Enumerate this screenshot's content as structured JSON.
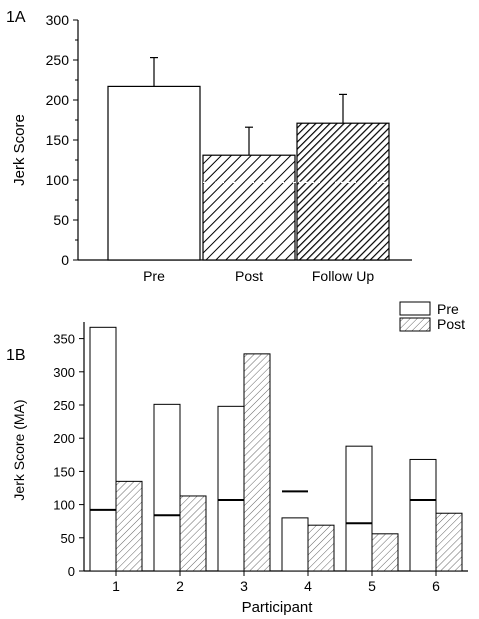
{
  "chart_data": [
    {
      "panel_label": "1A",
      "type": "bar",
      "categories": [
        "Pre",
        "Post",
        "Follow Up"
      ],
      "values": [
        217,
        131,
        171
      ],
      "error_upper": [
        253,
        166,
        207
      ],
      "fill": [
        "blank",
        "diagonal-hatch",
        "dense-diagonal-hatch"
      ],
      "ylabel": "Jerk Score",
      "ylim": [
        0,
        300
      ],
      "yticks": [
        "0",
        "50",
        "100",
        "150",
        "200",
        "250",
        "300"
      ],
      "reference_line": 97,
      "legend": "none",
      "grid": false
    },
    {
      "panel_label": "1B",
      "type": "bar",
      "categories": [
        "1",
        "2",
        "3",
        "4",
        "5",
        "6"
      ],
      "xlabel": "Participant",
      "ylabel": "Jerk Score (MA)",
      "ylim": [
        0,
        375
      ],
      "yticks": [
        "0",
        "50",
        "100",
        "150",
        "200",
        "250",
        "300",
        "350"
      ],
      "series": [
        {
          "name": "Pre",
          "values": [
            367,
            251,
            248,
            80,
            188,
            168
          ],
          "fill": "blank"
        },
        {
          "name": "Post",
          "values": [
            135,
            113,
            327,
            69,
            56,
            87
          ],
          "fill": "diagonal-hatch"
        }
      ],
      "marker_values": [
        92,
        84,
        107,
        120,
        72,
        107
      ],
      "legend": "top-right",
      "grid": false
    }
  ]
}
